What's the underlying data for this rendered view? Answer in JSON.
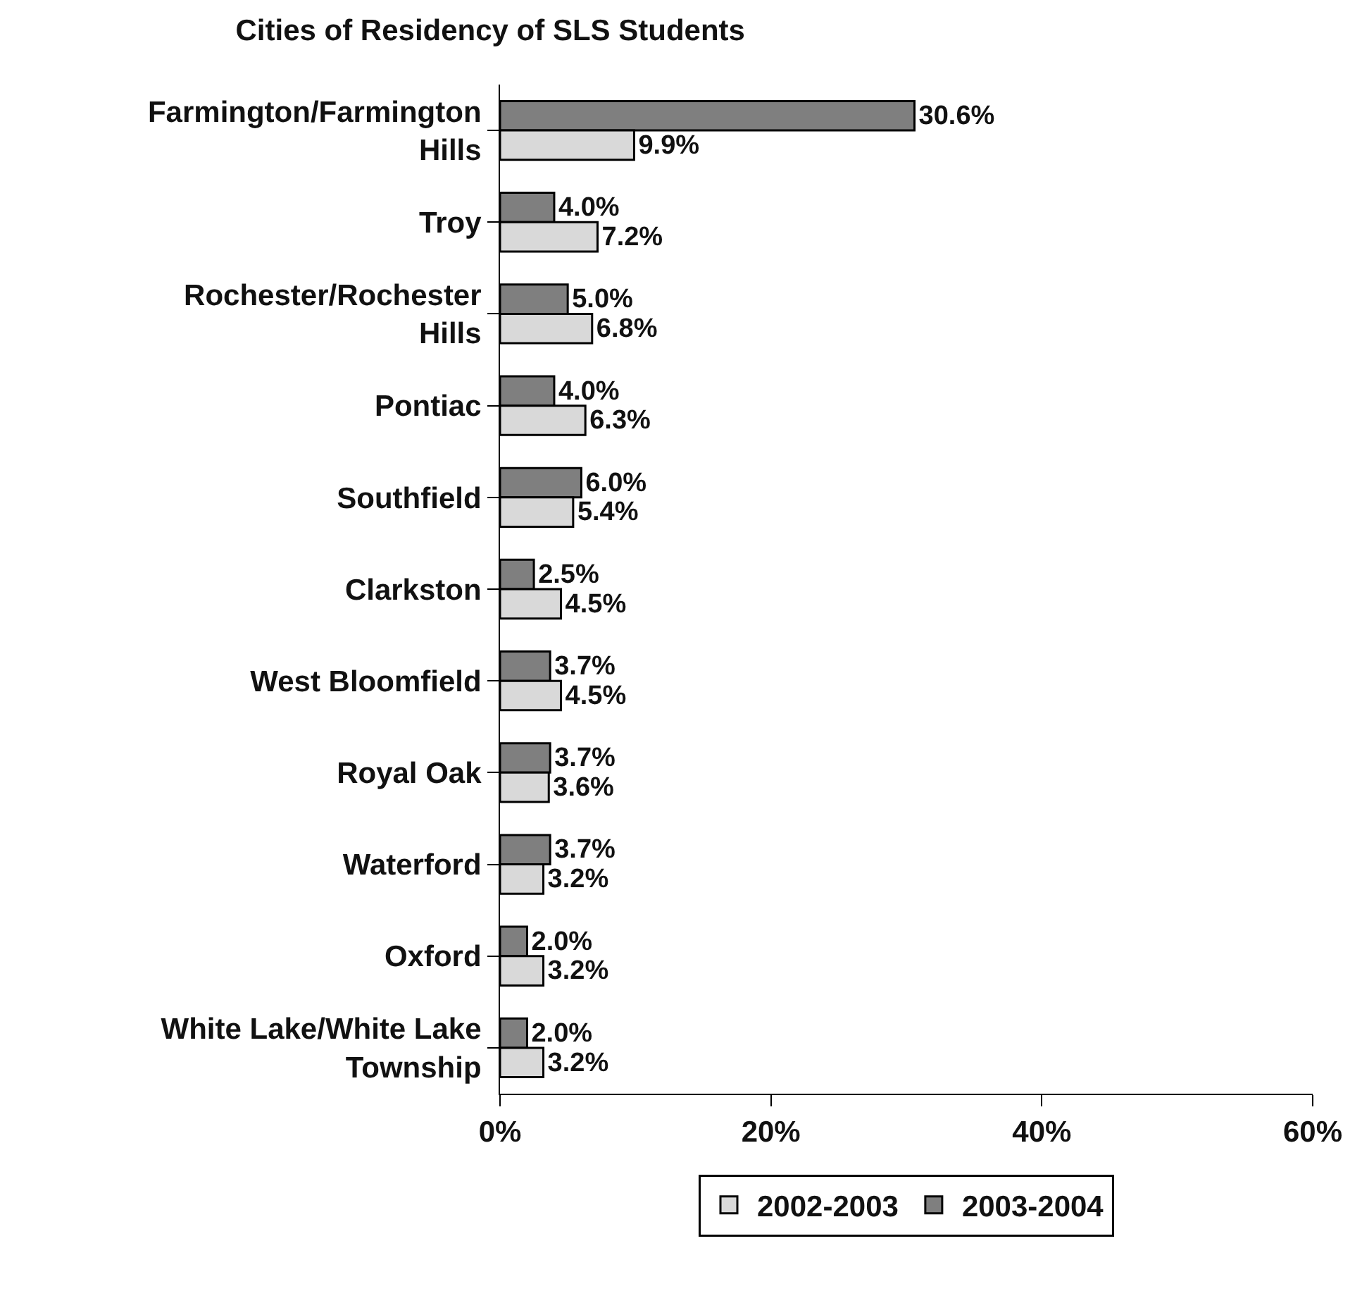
{
  "chart_data": {
    "type": "bar",
    "orientation": "horizontal",
    "title": "Cities of Residency of SLS Students",
    "categories": [
      "Farmington/Farmington Hills",
      "Troy",
      "Rochester/Rochester Hills",
      "Pontiac",
      "Southfield",
      "Clarkston",
      "West Bloomfield",
      "Royal Oak",
      "Waterford",
      "Oxford",
      "White Lake/White Lake Township"
    ],
    "series": [
      {
        "name": "2002-2003",
        "color": "#d9d9d9",
        "values": [
          9.9,
          7.2,
          6.8,
          6.3,
          5.4,
          4.5,
          4.5,
          3.6,
          3.2,
          3.2,
          3.2
        ],
        "value_labels": [
          "9.9%",
          "7.2%",
          "6.8%",
          "6.3%",
          "5.4%",
          "4.5%",
          "4.5%",
          "3.6%",
          "3.2%",
          "3.2%",
          "3.2%"
        ]
      },
      {
        "name": "2003-2004",
        "color": "#7f7f7f",
        "values": [
          30.6,
          4.0,
          5.0,
          4.0,
          6.0,
          2.5,
          3.7,
          3.7,
          3.7,
          2.0,
          2.0
        ],
        "value_labels": [
          "30.6%",
          "4.0%",
          "5.0%",
          "4.0%",
          "6.0%",
          "2.5%",
          "3.7%",
          "3.7%",
          "3.7%",
          "2.0%",
          "2.0%"
        ]
      }
    ],
    "xlim": [
      0,
      60
    ],
    "xticks": [
      {
        "value": 0,
        "label": "0%"
      },
      {
        "value": 20,
        "label": "20%"
      },
      {
        "value": 40,
        "label": "40%"
      },
      {
        "value": 60,
        "label": "60%"
      }
    ],
    "grid": false,
    "legend": "bottom"
  }
}
